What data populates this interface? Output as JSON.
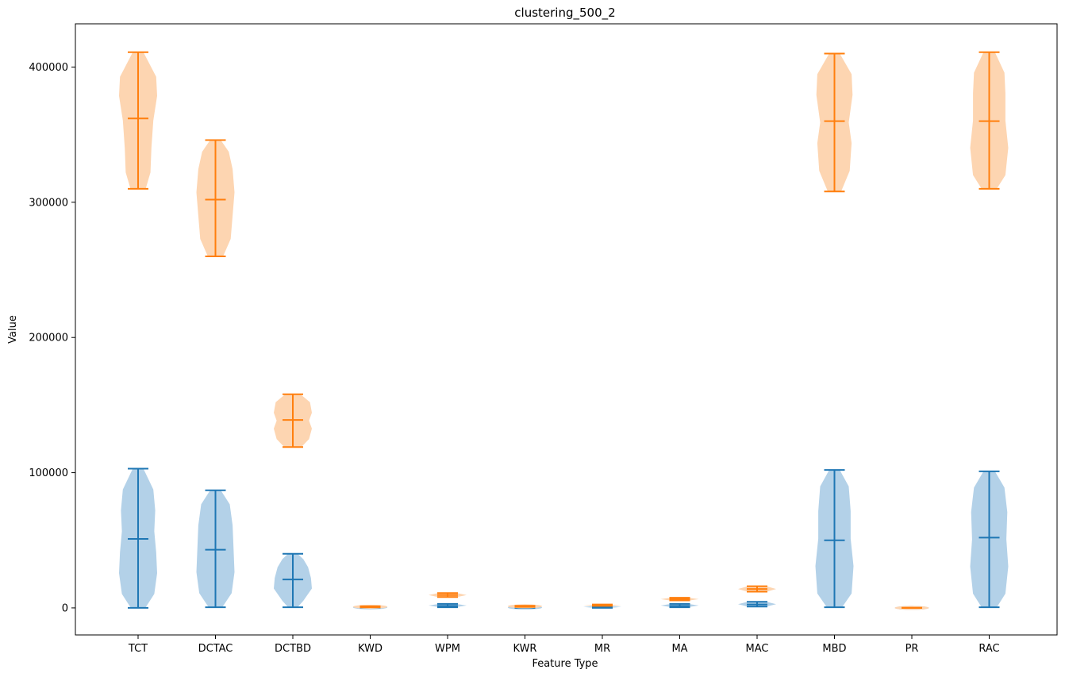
{
  "chart_data": {
    "type": "violin",
    "title": "clustering_500_2",
    "xlabel": "Feature Type",
    "ylabel": "Value",
    "ylim": [
      -20000,
      432000
    ],
    "yticks": [
      0,
      100000,
      200000,
      300000,
      400000
    ],
    "ytick_labels": [
      "0",
      "100000",
      "200000",
      "300000",
      "400000"
    ],
    "categories": [
      "TCT",
      "DCTAC",
      "DCTBD",
      "KWD",
      "WPM",
      "KWR",
      "MR",
      "MA",
      "MAC",
      "MBD",
      "PR",
      "RAC"
    ],
    "grid": false,
    "legend": "none",
    "series": [
      {
        "color": "#1f77b4",
        "fill": "#b3d1e8",
        "violins": [
          {
            "min": 0,
            "median": 51000,
            "max": 103000,
            "shape": [
              [
                0,
                0.38
              ],
              [
                0.1,
                0.85
              ],
              [
                0.25,
                1.0
              ],
              [
                0.4,
                0.95
              ],
              [
                0.55,
                0.85
              ],
              [
                0.7,
                0.9
              ],
              [
                0.85,
                0.8
              ],
              [
                1,
                0.28
              ]
            ]
          },
          {
            "min": 500,
            "median": 43000,
            "max": 87000,
            "shape": [
              [
                0,
                0.36
              ],
              [
                0.12,
                0.85
              ],
              [
                0.3,
                1.0
              ],
              [
                0.5,
                0.95
              ],
              [
                0.7,
                0.9
              ],
              [
                0.88,
                0.75
              ],
              [
                1,
                0.28
              ]
            ]
          },
          {
            "min": 500,
            "median": 21000,
            "max": 40000,
            "shape": [
              [
                0,
                0.25
              ],
              [
                0.12,
                0.55
              ],
              [
                0.35,
                1.0
              ],
              [
                0.55,
                0.95
              ],
              [
                0.75,
                0.8
              ],
              [
                0.9,
                0.55
              ],
              [
                1,
                0.25
              ]
            ]
          },
          {
            "min": 0,
            "median": 300,
            "max": 700,
            "shape": [
              [
                0,
                0.3
              ],
              [
                0.5,
                1.0
              ],
              [
                1,
                0.3
              ]
            ]
          },
          {
            "min": 500,
            "median": 1500,
            "max": 3000,
            "shape": [
              [
                0,
                0.4
              ],
              [
                0.5,
                1.0
              ],
              [
                1,
                0.4
              ]
            ]
          },
          {
            "min": 0,
            "median": 200,
            "max": 500,
            "shape": [
              [
                0,
                0.3
              ],
              [
                0.5,
                1.0
              ],
              [
                1,
                0.3
              ]
            ]
          },
          {
            "min": 0,
            "median": 700,
            "max": 1500,
            "shape": [
              [
                0,
                0.4
              ],
              [
                0.5,
                1.0
              ],
              [
                1,
                0.4
              ]
            ]
          },
          {
            "min": 500,
            "median": 1500,
            "max": 3000,
            "shape": [
              [
                0,
                0.4
              ],
              [
                0.5,
                1.0
              ],
              [
                1,
                0.4
              ]
            ]
          },
          {
            "min": 1000,
            "median": 2500,
            "max": 4500,
            "shape": [
              [
                0,
                0.5
              ],
              [
                0.5,
                1.0
              ],
              [
                1,
                0.5
              ]
            ]
          },
          {
            "min": 500,
            "median": 50000,
            "max": 102000,
            "shape": [
              [
                0,
                0.4
              ],
              [
                0.1,
                0.9
              ],
              [
                0.3,
                1.0
              ],
              [
                0.5,
                0.85
              ],
              [
                0.7,
                0.85
              ],
              [
                0.88,
                0.75
              ],
              [
                1,
                0.28
              ]
            ]
          },
          {
            "min": 0,
            "median": 0,
            "max": 0,
            "shape": [
              [
                0,
                0.5
              ],
              [
                1,
                0.5
              ]
            ]
          },
          {
            "min": 500,
            "median": 52000,
            "max": 101000,
            "shape": [
              [
                0,
                0.4
              ],
              [
                0.1,
                0.85
              ],
              [
                0.3,
                1.0
              ],
              [
                0.5,
                0.9
              ],
              [
                0.7,
                0.95
              ],
              [
                0.88,
                0.8
              ],
              [
                1,
                0.3
              ]
            ]
          }
        ]
      },
      {
        "color": "#ff7f0e",
        "fill": "#fdd5b1",
        "violins": [
          {
            "min": 310000,
            "median": 362000,
            "max": 411000,
            "shape": [
              [
                0,
                0.4
              ],
              [
                0.12,
                0.65
              ],
              [
                0.3,
                0.7
              ],
              [
                0.5,
                0.8
              ],
              [
                0.68,
                1.0
              ],
              [
                0.82,
                0.95
              ],
              [
                1,
                0.28
              ]
            ]
          },
          {
            "min": 260000,
            "median": 302000,
            "max": 346000,
            "shape": [
              [
                0,
                0.4
              ],
              [
                0.15,
                0.8
              ],
              [
                0.35,
                0.9
              ],
              [
                0.55,
                1.0
              ],
              [
                0.75,
                0.9
              ],
              [
                0.9,
                0.7
              ],
              [
                1,
                0.28
              ]
            ]
          },
          {
            "min": 119000,
            "median": 139000,
            "max": 158000,
            "shape": [
              [
                0,
                0.45
              ],
              [
                0.15,
                0.85
              ],
              [
                0.35,
                1.0
              ],
              [
                0.5,
                0.85
              ],
              [
                0.65,
                1.0
              ],
              [
                0.85,
                0.9
              ],
              [
                1,
                0.4
              ]
            ]
          },
          {
            "min": 500,
            "median": 800,
            "max": 1200,
            "shape": [
              [
                0,
                0.3
              ],
              [
                0.5,
                1.0
              ],
              [
                1,
                0.3
              ]
            ]
          },
          {
            "min": 8000,
            "median": 9500,
            "max": 11000,
            "shape": [
              [
                0,
                0.5
              ],
              [
                0.5,
                1.0
              ],
              [
                1,
                0.5
              ]
            ]
          },
          {
            "min": 800,
            "median": 1200,
            "max": 1600,
            "shape": [
              [
                0,
                0.3
              ],
              [
                0.5,
                1.0
              ],
              [
                1,
                0.3
              ]
            ]
          },
          {
            "min": 1500,
            "median": 2000,
            "max": 2500,
            "shape": [
              [
                0,
                0.3
              ],
              [
                0.5,
                1.0
              ],
              [
                1,
                0.3
              ]
            ]
          },
          {
            "min": 5500,
            "median": 6500,
            "max": 7500,
            "shape": [
              [
                0,
                0.5
              ],
              [
                0.5,
                1.0
              ],
              [
                1,
                0.5
              ]
            ]
          },
          {
            "min": 12000,
            "median": 14000,
            "max": 16000,
            "shape": [
              [
                0,
                0.5
              ],
              [
                0.5,
                1.0
              ],
              [
                1,
                0.5
              ]
            ]
          },
          {
            "min": 308000,
            "median": 360000,
            "max": 410000,
            "shape": [
              [
                0,
                0.35
              ],
              [
                0.15,
                0.8
              ],
              [
                0.35,
                0.9
              ],
              [
                0.5,
                0.75
              ],
              [
                0.7,
                0.95
              ],
              [
                0.85,
                0.9
              ],
              [
                1,
                0.28
              ]
            ]
          },
          {
            "min": 0,
            "median": 0,
            "max": 0,
            "shape": [
              [
                0,
                0.5
              ],
              [
                1,
                0.5
              ]
            ]
          },
          {
            "min": 310000,
            "median": 360000,
            "max": 411000,
            "shape": [
              [
                0,
                0.4
              ],
              [
                0.1,
                0.85
              ],
              [
                0.3,
                1.0
              ],
              [
                0.5,
                0.85
              ],
              [
                0.7,
                0.85
              ],
              [
                0.85,
                0.8
              ],
              [
                1,
                0.3
              ]
            ]
          }
        ]
      }
    ]
  }
}
